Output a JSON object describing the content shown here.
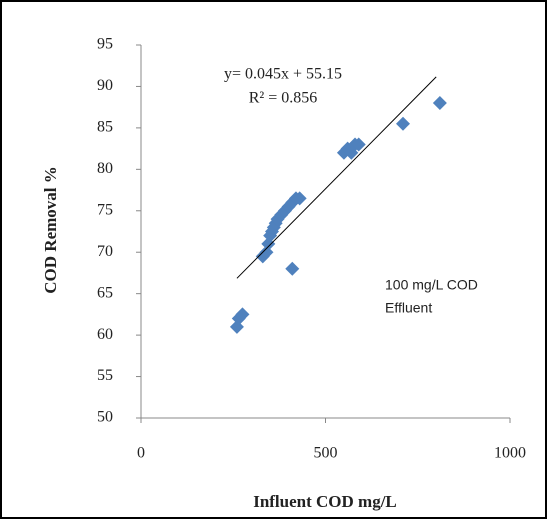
{
  "chart_data": {
    "type": "scatter",
    "x_label": "Influent COD mg/L",
    "y_label": "COD Removal %",
    "xlim": [
      0,
      1000
    ],
    "xticks": [
      0,
      500,
      1000
    ],
    "ylim": [
      50,
      95
    ],
    "yticks": [
      50,
      55,
      60,
      65,
      70,
      75,
      80,
      85,
      90,
      95
    ],
    "grid": false,
    "series": [
      {
        "color": "#4f81bd",
        "x": [
          260,
          265,
          275,
          330,
          340,
          345,
          350,
          355,
          360,
          365,
          370,
          380,
          390,
          400,
          410,
          420,
          430,
          410,
          550,
          560,
          570,
          580,
          590,
          710,
          810
        ],
        "values": [
          61,
          62,
          62.5,
          69.5,
          70,
          71,
          72,
          72.5,
          73,
          73.5,
          74,
          74.5,
          75,
          75.5,
          76,
          76.5,
          76.5,
          68,
          82,
          82.5,
          82,
          83,
          83,
          85.5,
          88
        ]
      }
    ],
    "trendline": {
      "color": "#000000",
      "x": [
        260,
        800
      ],
      "values": [
        66.85,
        91.15
      ],
      "equation": "y= 0.045x + 55.15",
      "r2": "R² = 0.856"
    },
    "annotation": [
      "100 mg/L COD",
      "Effluent"
    ]
  }
}
